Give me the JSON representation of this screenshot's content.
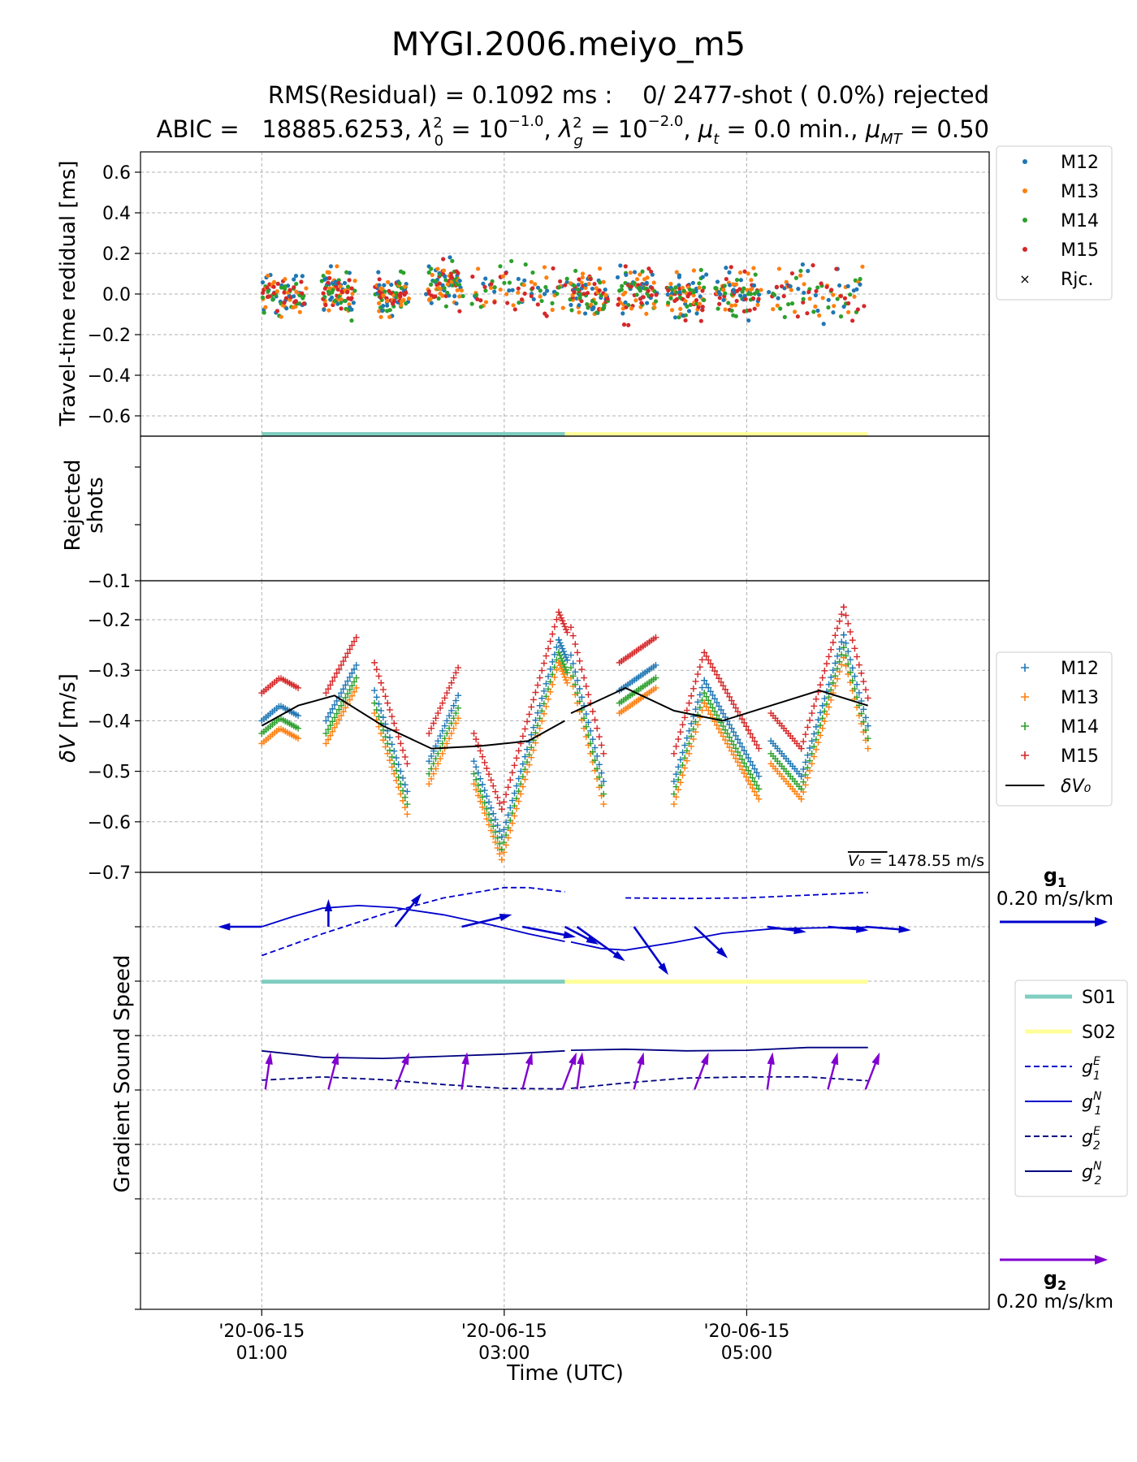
{
  "figure": {
    "title": "MYGI.2006.meiyo_m5",
    "subtitle_line1": "RMS(Residual) = 0.1092 ms :    0/ 2477-shot ( 0.0%) rejected",
    "subtitle_line2_prefix": "ABIC =   18885.6253,",
    "subtitle_line2_math": [
      "λ₀² = 10⁻¹·⁰",
      "λg² = 10⁻²·⁰",
      "μt = 0.0 min.",
      "μMT = 0.50"
    ]
  },
  "chart_data": [
    {
      "type": "scatter",
      "panel": "residual",
      "ylabel": "Travel-time redidual [ms]",
      "ylim": [
        -0.7,
        0.7
      ],
      "yticks": [
        0.6,
        0.4,
        0.2,
        0.0,
        -0.2,
        -0.4,
        -0.6
      ],
      "ytick_labels": [
        "0.6",
        "0.4",
        "0.2",
        "0.0",
        "−0.2",
        "−0.4",
        "−0.6"
      ],
      "x_unit": "hours UTC on 2020-06-15",
      "xlim": [
        0.0,
        7.0
      ],
      "xgrid": [
        1.0,
        3.0,
        5.0
      ],
      "grid": true,
      "legend_position": "outside-right",
      "series": [
        {
          "name": "M12",
          "color": "#1f77b4",
          "marker": "dot"
        },
        {
          "name": "M13",
          "color": "#ff7f0e",
          "marker": "dot"
        },
        {
          "name": "M14",
          "color": "#2ca02c",
          "marker": "dot"
        },
        {
          "name": "M15",
          "color": "#d62728",
          "marker": "dot"
        },
        {
          "name": "Rjc.",
          "color": "#000000",
          "marker": "x"
        }
      ],
      "shot_blocks": [
        {
          "x": [
            1.0,
            1.35
          ],
          "center": 0.0
        },
        {
          "x": [
            1.5,
            1.75
          ],
          "center": 0.0
        },
        {
          "x": [
            1.95,
            2.2
          ],
          "center": 0.0
        },
        {
          "x": [
            2.37,
            2.65
          ],
          "center": 0.05
        },
        {
          "x": [
            2.75,
            3.5
          ],
          "center": 0.02
        },
        {
          "x": [
            3.55,
            3.85
          ],
          "center": 0.0
        },
        {
          "x": [
            3.95,
            4.25
          ],
          "center": 0.02
        },
        {
          "x": [
            4.35,
            4.65
          ],
          "center": 0.0
        },
        {
          "x": [
            4.75,
            5.1
          ],
          "center": 0.0
        },
        {
          "x": [
            5.2,
            5.95
          ],
          "center": 0.0
        }
      ],
      "rms_ms": 0.1092,
      "shots_total": 2477,
      "shots_rejected": 0,
      "session_bars": [
        {
          "name": "S01",
          "x": [
            1.0,
            3.5
          ],
          "color": "#80cdc1"
        },
        {
          "name": "S02",
          "x": [
            3.5,
            6.0
          ],
          "color": "#ffff99"
        }
      ]
    },
    {
      "type": "scatter",
      "panel": "rejected",
      "ylabel": "Rejected shots",
      "values": []
    },
    {
      "type": "line",
      "panel": "dV",
      "ylabel": "δV [m/s]",
      "ylim": [
        -0.7,
        -0.15
      ],
      "yticks": [
        -0.1,
        -0.2,
        -0.3,
        -0.4,
        -0.5,
        -0.6,
        -0.7
      ],
      "ytick_labels": [
        "−0.1",
        "−0.2",
        "−0.3",
        "−0.4",
        "−0.5",
        "−0.6",
        "−0.7"
      ],
      "annotation": "1478.55 m/s",
      "annotation_symbol": "V₀ =",
      "v0_m_s": 1478.55,
      "series": [
        {
          "name": "M12",
          "color": "#1f77b4",
          "offset": -0.02
        },
        {
          "name": "M13",
          "color": "#ff7f0e",
          "offset": -0.065
        },
        {
          "name": "M14",
          "color": "#2ca02c",
          "offset": -0.045
        },
        {
          "name": "M15",
          "color": "#d62728",
          "offset": 0.035
        }
      ],
      "segments": [
        {
          "x": [
            1.0,
            1.3
          ],
          "y_start": -0.38,
          "y_peak": -0.35,
          "y_end": -0.37
        },
        {
          "x": [
            1.53,
            1.78
          ],
          "y_start": -0.38,
          "y_end": -0.27
        },
        {
          "x": [
            1.93,
            2.2
          ],
          "y_start": -0.32,
          "y_end": -0.52
        },
        {
          "x": [
            2.38,
            2.62
          ],
          "y_start": -0.46,
          "y_end": -0.33
        },
        {
          "x": [
            2.75,
            2.98
          ],
          "y_start": -0.46,
          "y_end": -0.61
        },
        {
          "x": [
            2.98,
            3.45
          ],
          "y_start": -0.61,
          "y_end": -0.22
        },
        {
          "x": [
            3.45,
            3.52
          ],
          "y_start": -0.22,
          "y_end": -0.26
        },
        {
          "x": [
            3.55,
            3.82
          ],
          "y_start": -0.25,
          "y_end": -0.5
        },
        {
          "x": [
            3.95,
            4.25
          ],
          "y_start": -0.32,
          "y_end": -0.27
        },
        {
          "x": [
            4.4,
            4.65
          ],
          "y_start": -0.5,
          "y_end": -0.3
        },
        {
          "x": [
            4.65,
            5.1
          ],
          "y_start": -0.3,
          "y_end": -0.49
        },
        {
          "x": [
            5.2,
            5.45
          ],
          "y_start": -0.42,
          "y_end": -0.49
        },
        {
          "x": [
            5.45,
            5.8
          ],
          "y_start": -0.49,
          "y_end": -0.21
        },
        {
          "x": [
            5.8,
            6.0
          ],
          "y_start": -0.21,
          "y_end": -0.39
        }
      ],
      "dV0": {
        "name": "δV₀",
        "color": "#000000",
        "x": [
          1.0,
          1.3,
          1.6,
          2.0,
          2.4,
          2.8,
          3.2,
          3.5,
          3.55,
          4.0,
          4.4,
          4.8,
          5.2,
          5.6,
          6.0
        ],
        "y": [
          -0.41,
          -0.37,
          -0.35,
          -0.41,
          -0.455,
          -0.45,
          -0.44,
          -0.4,
          -0.385,
          -0.335,
          -0.38,
          -0.4,
          -0.37,
          -0.34,
          -0.37
        ]
      }
    },
    {
      "type": "line",
      "panel": "gradient",
      "ylabel": "Gradient Sound Speed",
      "g1_scale_label": "0.20 m/s/km",
      "g2_scale_label": "0.20 m/s/km",
      "g1_color": "#0000cc",
      "g2_color": "#8000d0",
      "series": [
        {
          "name": "g1E",
          "label": "g₁ᴱ",
          "style": "dashed",
          "color": "#0000cc",
          "x": [
            1.0,
            1.5,
            2.0,
            2.5,
            3.0,
            3.2,
            3.5,
            4.0,
            4.5,
            5.0,
            5.5,
            6.0
          ],
          "y": [
            0.47,
            0.87,
            1.23,
            1.53,
            1.72,
            1.72,
            1.64,
            1.53,
            1.52,
            1.53,
            1.58,
            1.63
          ]
        },
        {
          "name": "g1N",
          "label": "g₁ᴺ",
          "style": "solid",
          "color": "#0000cc",
          "x": [
            1.0,
            1.25,
            1.5,
            1.8,
            2.1,
            2.5,
            2.9,
            3.2,
            3.5,
            3.55,
            3.8,
            4.0,
            4.4,
            4.8,
            5.2,
            5.6,
            6.0
          ],
          "y": [
            1.0,
            1.18,
            1.34,
            1.39,
            1.35,
            1.22,
            1.03,
            0.87,
            0.73,
            0.72,
            0.6,
            0.57,
            0.71,
            0.88,
            0.96,
            0.98,
            0.99
          ]
        },
        {
          "name": "g2E",
          "label": "g₂ᴱ",
          "style": "dashed",
          "color": "#000080",
          "x": [
            1.0,
            1.5,
            2.0,
            2.5,
            3.0,
            3.5,
            3.55,
            4.0,
            4.5,
            5.0,
            5.5,
            6.0
          ],
          "y": [
            -1.82,
            -1.76,
            -1.81,
            -1.9,
            -1.97,
            -1.98,
            -1.97,
            -1.87,
            -1.78,
            -1.76,
            -1.76,
            -1.83
          ]
        },
        {
          "name": "g2N",
          "label": "g₂ᴺ",
          "style": "solid",
          "color": "#000080",
          "x": [
            1.0,
            1.5,
            2.0,
            2.5,
            3.0,
            3.5,
            3.55,
            4.0,
            4.5,
            5.0,
            5.5,
            6.0
          ],
          "y": [
            -1.28,
            -1.4,
            -1.42,
            -1.38,
            -1.34,
            -1.28,
            -1.27,
            -1.25,
            -1.28,
            -1.27,
            -1.22,
            -1.22
          ]
        }
      ],
      "legend": [
        {
          "name": "S01",
          "color": "#80cdc1",
          "kind": "thick"
        },
        {
          "name": "S02",
          "color": "#ffff99",
          "kind": "thick"
        },
        {
          "name": "g1E",
          "color": "#0000cc",
          "kind": "dashed"
        },
        {
          "name": "g1N",
          "color": "#0000cc",
          "kind": "solid"
        },
        {
          "name": "g2E",
          "color": "#000080",
          "kind": "dashed"
        },
        {
          "name": "g2N",
          "color": "#000080",
          "kind": "solid"
        }
      ]
    }
  ],
  "x_axis": {
    "label": "Time (UTC)",
    "ticks": [
      {
        "x": 1.0,
        "line1": "'20-06-15",
        "line2": "01:00"
      },
      {
        "x": 3.0,
        "line1": "'20-06-15",
        "line2": "03:00"
      },
      {
        "x": 5.0,
        "line1": "'20-06-15",
        "line2": "05:00"
      }
    ]
  }
}
